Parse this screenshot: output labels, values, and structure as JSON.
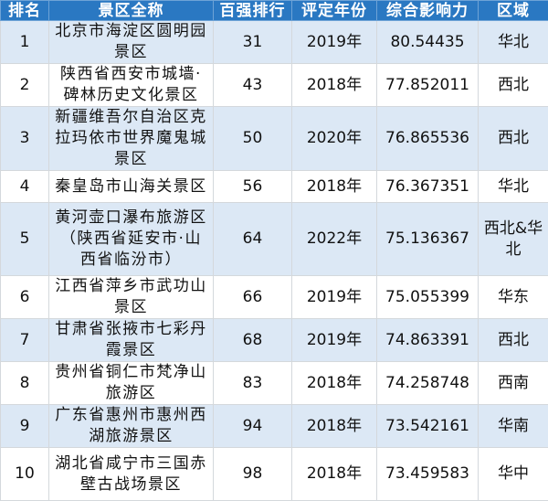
{
  "headers": [
    "排名",
    "景区全称",
    "百强排行",
    "评定年份",
    "综合影响力",
    "区域"
  ],
  "rows": [
    {
      "rank": "1",
      "name": "北京市海淀区圆明园\n景区",
      "top100": "31",
      "year": "2019年",
      "score": "80.54435",
      "region": "华北"
    },
    {
      "rank": "2",
      "name": "陕西省西安市城墙·\n碑林历史文化景区",
      "top100": "43",
      "year": "2018年",
      "score": "77.852011",
      "region": "西北"
    },
    {
      "rank": "3",
      "name": "新疆维吾尔自治区克\n拉玛依市世界魔鬼城\n景区",
      "top100": "50",
      "year": "2020年",
      "score": "76.865536",
      "region": "西北"
    },
    {
      "rank": "4",
      "name": "秦皇岛市山海关景区",
      "top100": "56",
      "year": "2018年",
      "score": "76.367351",
      "region": "华北"
    },
    {
      "rank": "5",
      "name": "黄河壶口瀑布旅游区\n（陕西省延安市·山\n西省临汾市）",
      "top100": "64",
      "year": "2022年",
      "score": "75.136367",
      "region": "西北&华\n北"
    },
    {
      "rank": "6",
      "name": "江西省萍乡市武功山\n景区",
      "top100": "66",
      "year": "2019年",
      "score": "75.055399",
      "region": "华东"
    },
    {
      "rank": "7",
      "name": "甘肃省张掖市七彩丹\n霞景区",
      "top100": "68",
      "year": "2019年",
      "score": "74.863391",
      "region": "西北"
    },
    {
      "rank": "8",
      "name": "贵州省铜仁市梵净山\n旅游区",
      "top100": "83",
      "year": "2018年",
      "score": "74.258748",
      "region": "西南"
    },
    {
      "rank": "9",
      "name": "广东省惠州市惠州西\n湖旅游景区",
      "top100": "94",
      "year": "2018年",
      "score": "73.542161",
      "region": "华南"
    },
    {
      "rank": "10",
      "name": "湖北省咸宁市三国赤\n壁古战场景区",
      "top100": "98",
      "year": "2018年",
      "score": "73.459583",
      "region": "华中"
    }
  ],
  "colors": {
    "header_bg": "#2a78c2",
    "alt_row_bg": "#dce8f5"
  }
}
